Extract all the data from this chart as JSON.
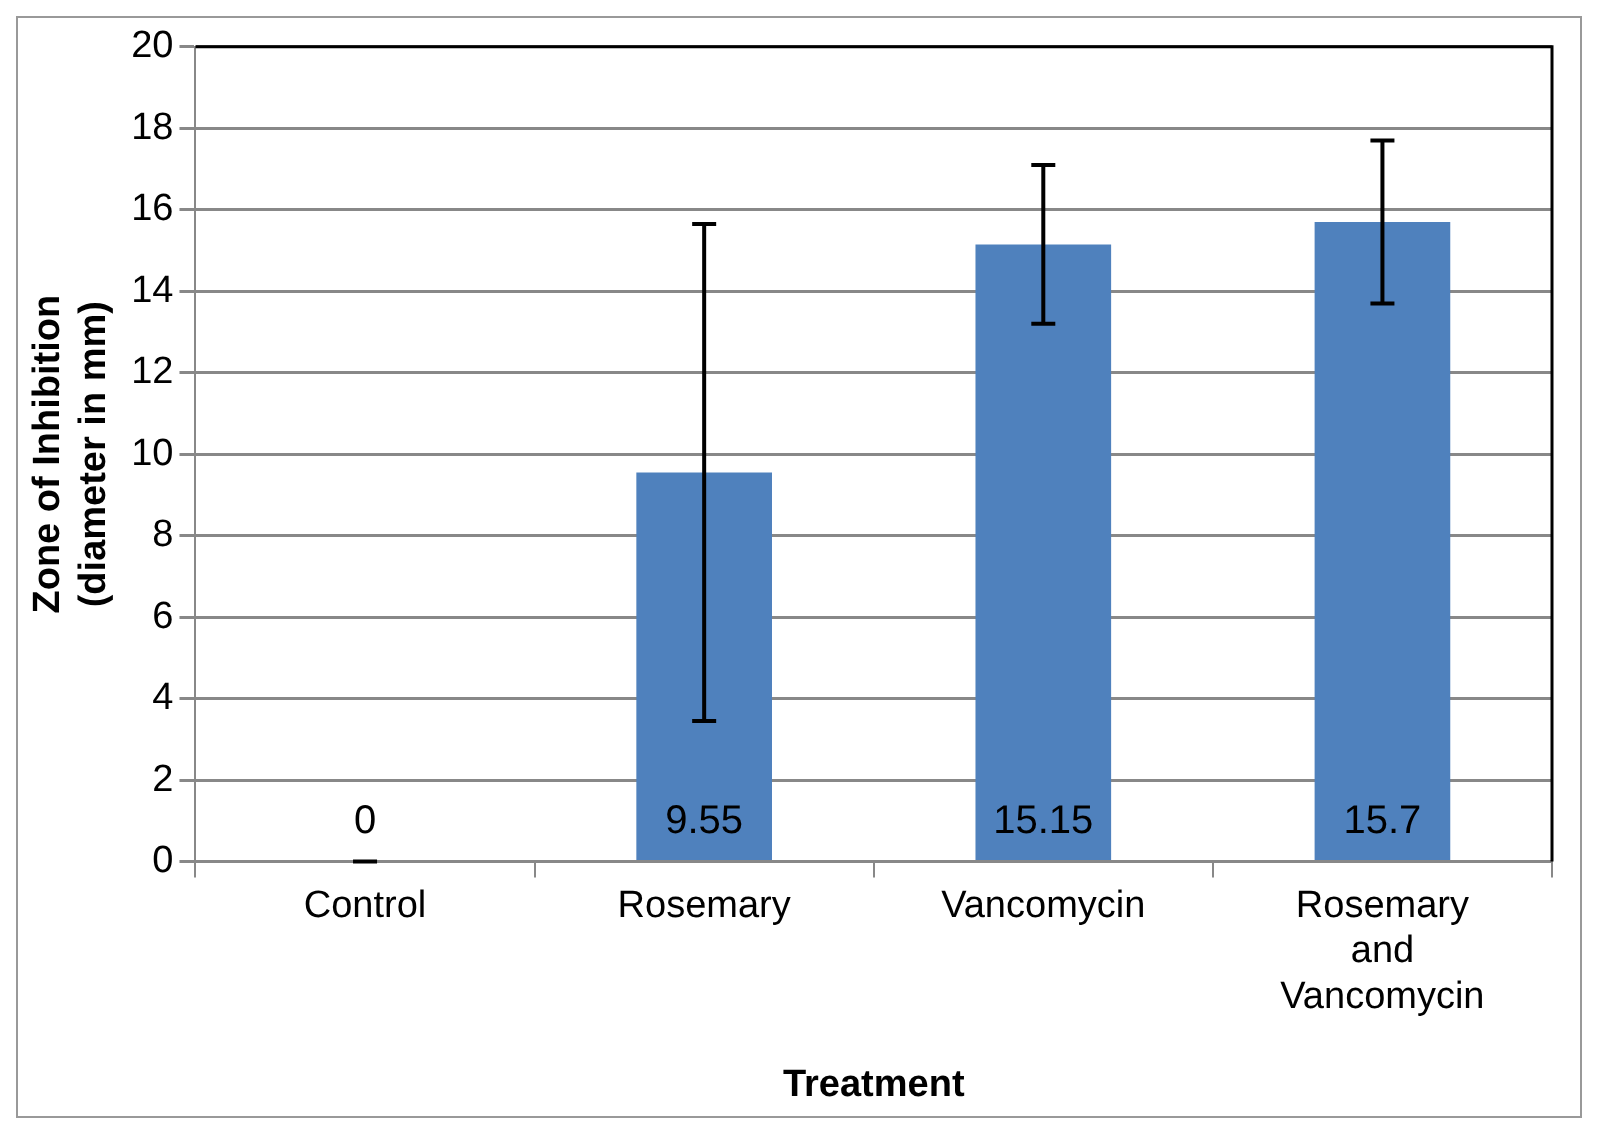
{
  "chart_data": {
    "type": "bar",
    "xlabel": "Treatment",
    "ylabel": "Zone of Inhibition\n(diameter in mm)",
    "categories": [
      "Control",
      "Rosemary",
      "Vancomycin",
      "Rosemary and Vancomycin"
    ],
    "values": [
      0,
      9.55,
      15.15,
      15.7
    ],
    "errors": [
      0,
      6.1,
      1.95,
      2.0
    ],
    "color": "#4f81bd",
    "ylim": [
      0,
      20
    ],
    "yticks": [
      0,
      2,
      4,
      6,
      8,
      10,
      12,
      14,
      16,
      18,
      20
    ],
    "grid": "y",
    "data_labels": true
  }
}
